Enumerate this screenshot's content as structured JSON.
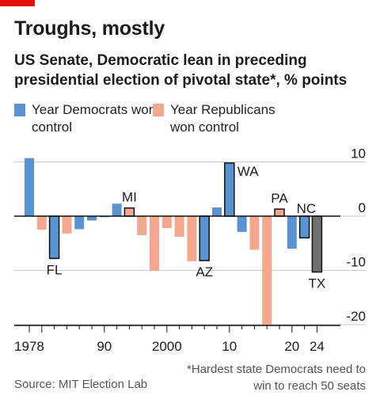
{
  "header": {
    "title": "Troughs, mostly",
    "subtitle": "US Senate, Democratic lean in preceding presidential election of pivotal state*, % points"
  },
  "legend": [
    {
      "label": "Year Democrats won control",
      "color": "#5b92d1"
    },
    {
      "label": "Year Republicans won control",
      "color": "#f4a88f"
    }
  ],
  "colors": {
    "dem": "#5b92d1",
    "rep": "#f4a88f",
    "pending": "#6e716e"
  },
  "footer": {
    "footnote": "*Hardest state Democrats need to win to reach 50 seats",
    "source": "Source: MIT Election Lab"
  },
  "chart_data": {
    "type": "bar",
    "x": [
      1978,
      1980,
      1982,
      1984,
      1986,
      1988,
      1990,
      1992,
      1994,
      1996,
      1998,
      2000,
      2002,
      2004,
      2006,
      2008,
      2010,
      2012,
      2014,
      2016,
      2018,
      2020,
      2022,
      2024
    ],
    "values": [
      10.7,
      -2.5,
      -7.8,
      -3.2,
      -2.4,
      -0.8,
      -0.2,
      2.3,
      1.5,
      -3.5,
      -10.1,
      -2.2,
      -3.8,
      -8.3,
      -8.2,
      1.6,
      9.8,
      -2.9,
      -6.2,
      -20.1,
      1.3,
      -6.0,
      -4.0,
      -10.3
    ],
    "control": [
      "D",
      "R",
      "D",
      "R",
      "D",
      "D",
      "D",
      "D",
      "R",
      "R",
      "R",
      "R",
      "R",
      "R",
      "D",
      "D",
      "D",
      "D",
      "R",
      "R",
      "R",
      "D",
      "D",
      "pending"
    ],
    "annotations": [
      {
        "year": 1982,
        "label": "FL"
      },
      {
        "year": 1994,
        "label": "MI"
      },
      {
        "year": 2006,
        "label": "AZ"
      },
      {
        "year": 2010,
        "label": "WA"
      },
      {
        "year": 2018,
        "label": "PA"
      },
      {
        "year": 2022,
        "label": "NC"
      },
      {
        "year": 2024,
        "label": "TX"
      }
    ],
    "xticks": [
      "1978",
      "90",
      "2000",
      "10",
      "20",
      "24"
    ],
    "yticks": [
      "10",
      "0",
      "-10",
      "-20"
    ],
    "ylim": [
      -20,
      10
    ],
    "grid": true
  }
}
